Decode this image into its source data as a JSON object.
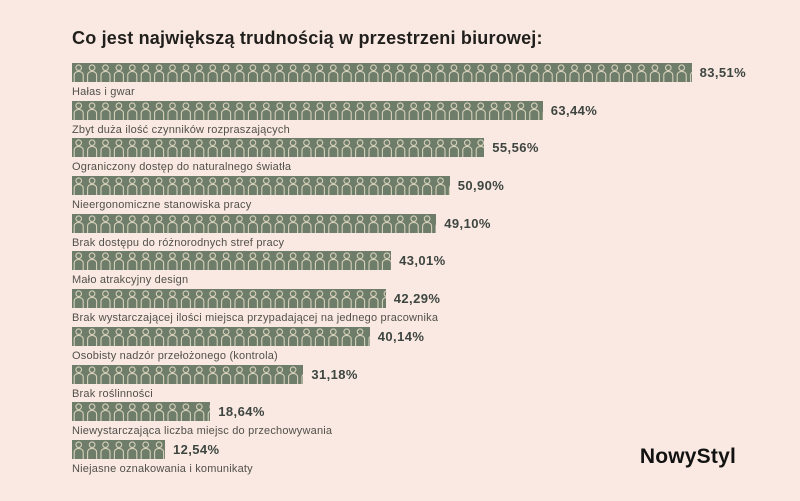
{
  "header": {
    "title": "Co jest największą trudnością w przestrzeni biurowej:"
  },
  "logo": "NowyStyl",
  "colors": {
    "background": "#f9e9e2",
    "bar": "#6e7c6a",
    "icon_outline": "#d6d0b9",
    "title_text": "#211f1c",
    "value_text": "#3e4540",
    "label_text": "#52504a",
    "logo_text": "#121212"
  },
  "chart_data": {
    "type": "bar",
    "orientation": "horizontal",
    "bar_style": "pictogram-people",
    "title": "Co jest największą trudnością w przestrzeni biurowej:",
    "xlabel": "",
    "ylabel": "",
    "xlim": [
      0,
      100
    ],
    "grid": false,
    "legend": false,
    "categories": [
      "Hałas i gwar",
      "Zbyt duża ilość czynników rozpraszających",
      "Ograniczony dostęp do naturalnego światła",
      "Nieergonomiczne stanowiska pracy",
      "Brak dostępu do różnorodnych stref pracy",
      "Mało atrakcyjny design",
      "Brak wystarczającej ilości miejsca przypadającej na jednego pracownika",
      "Osobisty nadzór przełożonego (kontrola)",
      "Brak roślinności",
      "Niewystarczająca liczba miejsc do przechowywania",
      "Niejasne oznakowania i komunikaty"
    ],
    "values": [
      83.51,
      63.44,
      55.56,
      50.9,
      49.1,
      43.01,
      42.29,
      40.14,
      31.18,
      18.64,
      12.54
    ],
    "value_labels": [
      "83,51%",
      "63,44%",
      "55,56%",
      "50,90%",
      "49,10%",
      "43,01%",
      "42,29%",
      "40,14%",
      "31,18%",
      "18,64%",
      "12,54%"
    ]
  }
}
